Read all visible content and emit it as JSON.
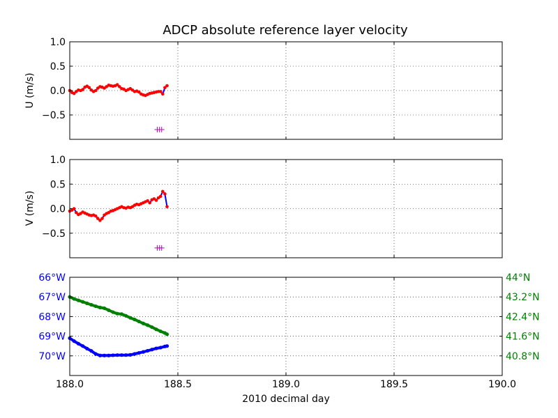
{
  "figure": {
    "title": "ADCP absolute reference layer velocity",
    "xlabel": "2010 decimal day"
  },
  "colors": {
    "raw": "#ff0000",
    "smooth": "#0000ff",
    "flag": "#bf00bf",
    "lon": "#0000ff",
    "lat": "#008000",
    "grid": "#000000"
  },
  "chart_data": [
    {
      "type": "scatter",
      "panel": "u",
      "ylabel": "U (m/s)",
      "xlim": [
        188.0,
        190.0
      ],
      "ylim": [
        -1.0,
        1.0
      ],
      "xticks": [
        188.0,
        188.5,
        189.0,
        189.5,
        190.0
      ],
      "yticks": [
        -0.5,
        0.0,
        0.5,
        1.0
      ],
      "ytick_labels": [
        "−0.5",
        "0.0",
        "0.5",
        "1.0"
      ],
      "show_x_ticklabels": false,
      "grid": true,
      "series": [
        {
          "style": "red-dots-with-blue-line",
          "x": [
            188.0,
            188.01,
            188.02,
            188.03,
            188.04,
            188.05,
            188.06,
            188.07,
            188.08,
            188.09,
            188.1,
            188.11,
            188.12,
            188.13,
            188.14,
            188.15,
            188.16,
            188.17,
            188.18,
            188.19,
            188.2,
            188.21,
            188.22,
            188.23,
            188.24,
            188.25,
            188.26,
            188.27,
            188.28,
            188.29,
            188.3,
            188.31,
            188.32,
            188.33,
            188.34,
            188.35,
            188.36,
            188.37,
            188.38,
            188.39,
            188.4,
            188.41,
            188.42,
            188.43,
            188.44,
            188.45
          ],
          "y": [
            0.0,
            -0.04,
            -0.06,
            -0.02,
            0.01,
            0.0,
            0.02,
            0.07,
            0.09,
            0.06,
            0.01,
            -0.02,
            0.0,
            0.05,
            0.08,
            0.07,
            0.05,
            0.08,
            0.11,
            0.1,
            0.09,
            0.1,
            0.12,
            0.08,
            0.04,
            0.03,
            0.0,
            0.02,
            0.04,
            0.01,
            -0.02,
            -0.01,
            -0.03,
            -0.07,
            -0.09,
            -0.1,
            -0.08,
            -0.06,
            -0.05,
            -0.04,
            -0.03,
            -0.02,
            -0.02,
            -0.07,
            0.06,
            0.1
          ]
        },
        {
          "style": "flag-plus",
          "x": [
            188.405,
            188.415,
            188.425
          ],
          "y": [
            -0.8,
            -0.8,
            -0.8
          ]
        }
      ]
    },
    {
      "type": "scatter",
      "panel": "v",
      "ylabel": "V (m/s)",
      "xlim": [
        188.0,
        190.0
      ],
      "ylim": [
        -1.0,
        1.0
      ],
      "xticks": [
        188.0,
        188.5,
        189.0,
        189.5,
        190.0
      ],
      "yticks": [
        -0.5,
        0.0,
        0.5,
        1.0
      ],
      "ytick_labels": [
        "−0.5",
        "0.0",
        "0.5",
        "1.0"
      ],
      "show_x_ticklabels": false,
      "grid": true,
      "series": [
        {
          "style": "red-dots-with-blue-line",
          "x": [
            188.0,
            188.01,
            188.02,
            188.03,
            188.04,
            188.05,
            188.06,
            188.07,
            188.08,
            188.09,
            188.1,
            188.11,
            188.12,
            188.13,
            188.14,
            188.15,
            188.16,
            188.17,
            188.18,
            188.19,
            188.2,
            188.21,
            188.22,
            188.23,
            188.24,
            188.25,
            188.26,
            188.27,
            188.28,
            188.29,
            188.3,
            188.31,
            188.32,
            188.33,
            188.34,
            188.35,
            188.36,
            188.37,
            188.38,
            188.39,
            188.4,
            188.41,
            188.42,
            188.43,
            188.44,
            188.45
          ],
          "y": [
            -0.05,
            -0.03,
            0.0,
            -0.08,
            -0.12,
            -0.1,
            -0.07,
            -0.09,
            -0.11,
            -0.13,
            -0.14,
            -0.13,
            -0.15,
            -0.2,
            -0.24,
            -0.2,
            -0.13,
            -0.1,
            -0.08,
            -0.05,
            -0.04,
            -0.02,
            0.0,
            0.02,
            0.04,
            0.02,
            0.01,
            0.03,
            0.02,
            0.04,
            0.07,
            0.09,
            0.08,
            0.1,
            0.12,
            0.14,
            0.16,
            0.12,
            0.18,
            0.2,
            0.17,
            0.22,
            0.25,
            0.35,
            0.3,
            0.04
          ]
        },
        {
          "style": "flag-plus",
          "x": [
            188.405,
            188.415,
            188.425
          ],
          "y": [
            -0.8,
            -0.8,
            -0.8
          ]
        }
      ]
    },
    {
      "type": "scatter",
      "panel": "position",
      "xlim": [
        188.0,
        190.0
      ],
      "xticks": [
        188.0,
        188.5,
        189.0,
        189.5,
        190.0
      ],
      "xtick_labels": [
        "188.0",
        "188.5",
        "189.0",
        "189.5",
        "190.0"
      ],
      "grid": true,
      "left_axis": {
        "ylim": [
          -71.0,
          -66.0
        ],
        "ticks": [
          -66,
          -67,
          -68,
          -69,
          -70
        ],
        "tick_labels": [
          "66°W",
          "67°W",
          "68°W",
          "69°W",
          "70°W"
        ]
      },
      "right_axis": {
        "ylim": [
          40.0,
          44.0
        ],
        "ticks": [
          44.0,
          43.2,
          42.4,
          41.6,
          40.8
        ],
        "tick_labels": [
          "44°N",
          "43.2°N",
          "42.4°N",
          "41.6°N",
          "40.8°N"
        ]
      },
      "series": [
        {
          "axis": "left",
          "x": [
            188.0,
            188.02,
            188.04,
            188.06,
            188.08,
            188.1,
            188.12,
            188.14,
            188.16,
            188.18,
            188.2,
            188.22,
            188.24,
            188.26,
            188.28,
            188.3,
            188.32,
            188.34,
            188.36,
            188.38,
            188.4,
            188.42,
            188.44,
            188.45
          ],
          "y": [
            -69.1,
            -69.25,
            -69.38,
            -69.5,
            -69.63,
            -69.75,
            -69.9,
            -69.98,
            -69.98,
            -69.98,
            -69.97,
            -69.96,
            -69.96,
            -69.96,
            -69.95,
            -69.9,
            -69.85,
            -69.8,
            -69.74,
            -69.68,
            -69.62,
            -69.58,
            -69.52,
            -69.5
          ]
        },
        {
          "axis": "right",
          "x": [
            188.0,
            188.02,
            188.04,
            188.06,
            188.08,
            188.1,
            188.12,
            188.14,
            188.16,
            188.18,
            188.2,
            188.22,
            188.24,
            188.26,
            188.28,
            188.3,
            188.32,
            188.34,
            188.36,
            188.38,
            188.4,
            188.42,
            188.44,
            188.45
          ],
          "y": [
            43.2,
            43.12,
            43.06,
            43.0,
            42.94,
            42.88,
            42.82,
            42.77,
            42.74,
            42.66,
            42.58,
            42.52,
            42.5,
            42.43,
            42.35,
            42.28,
            42.2,
            42.12,
            42.05,
            41.97,
            41.88,
            41.8,
            41.73,
            41.68
          ]
        }
      ]
    }
  ]
}
